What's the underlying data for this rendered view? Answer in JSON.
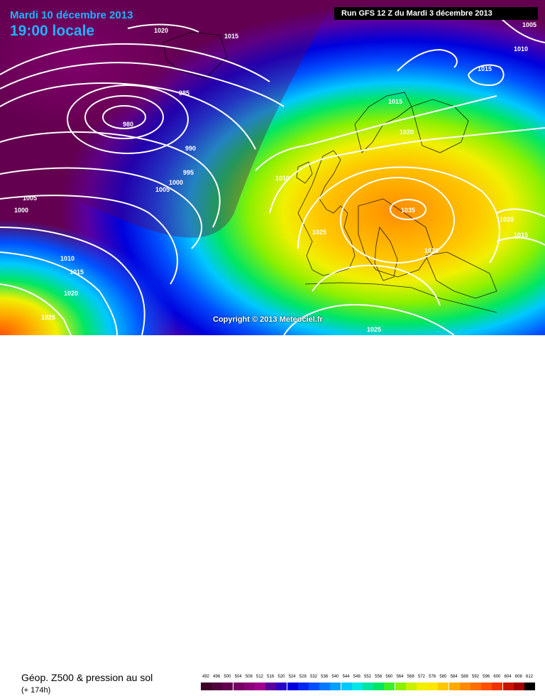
{
  "header": {
    "date": "Mardi 10 décembre 2013",
    "local_time": "19:00 locale",
    "run": "Run GFS 12 Z du Mardi 3 décembre 2013"
  },
  "copyright": "Copyright © 2013 Meteociel.fr",
  "footer": {
    "parameter": "Géop. Z500 & pression au sol",
    "lead_time": "(+ 174h)"
  },
  "legend": {
    "labels": [
      "492",
      "496",
      "500",
      "504",
      "508",
      "512",
      "516",
      "520",
      "524",
      "528",
      "532",
      "536",
      "540",
      "544",
      "548",
      "552",
      "556",
      "560",
      "564",
      "568",
      "572",
      "576",
      "580",
      "584",
      "588",
      "592",
      "596",
      "600",
      "604",
      "608",
      "612"
    ],
    "colors": [
      "#3c0028",
      "#50003c",
      "#640050",
      "#780064",
      "#8c0078",
      "#a0008c",
      "#5a00a0",
      "#2800c8",
      "#0000dc",
      "#0028f0",
      "#0050ff",
      "#0078ff",
      "#00a0ff",
      "#00c8ff",
      "#00e6e6",
      "#00e6a0",
      "#00e664",
      "#3cf028",
      "#8cf000",
      "#c8f000",
      "#f0f000",
      "#ffe600",
      "#ffc800",
      "#ffaa00",
      "#ff8c00",
      "#ff6e00",
      "#ff5000",
      "#f03200",
      "#c81400",
      "#a00000",
      "#000000"
    ]
  },
  "isobar_labels": [
    "1020",
    "1015",
    "1005",
    "1010",
    "1015",
    "985",
    "980",
    "990",
    "995",
    "1000",
    "1005",
    "1005",
    "1000",
    "1010",
    "1015",
    "1020",
    "1025",
    "1010",
    "1015",
    "1020",
    "1025",
    "1035",
    "1030",
    "1020",
    "1015",
    "1025"
  ],
  "colors": {
    "title": "#1fb3ff",
    "run_box": "#000000",
    "isobar": "#ffffff"
  }
}
